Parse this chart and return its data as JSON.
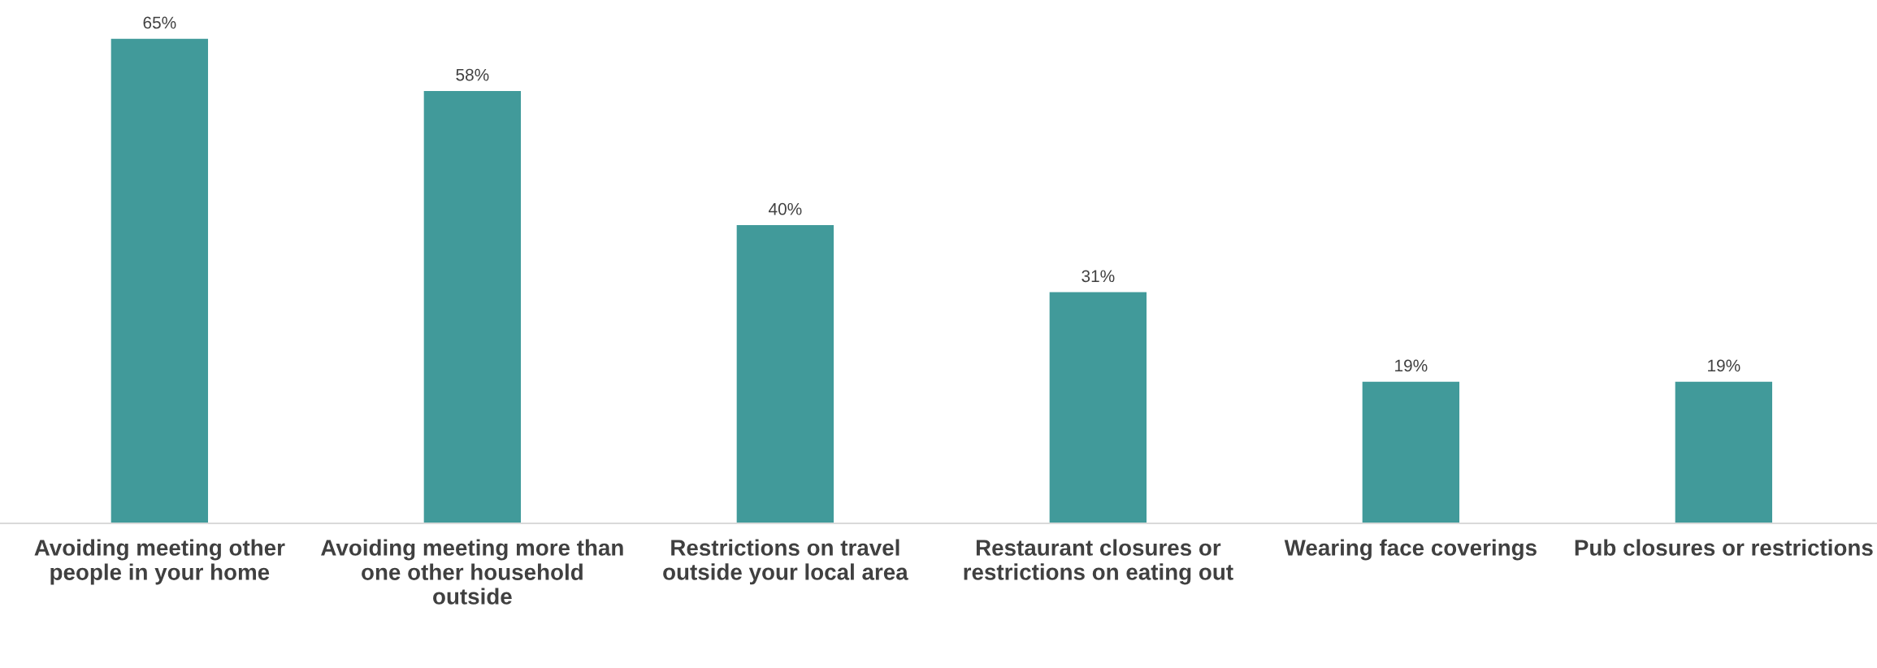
{
  "chart_data": {
    "type": "bar",
    "categories": [
      "Avoiding meeting other people in your home",
      "Avoiding meeting more than one other household outside",
      "Restrictions on travel outside your local area",
      "Restaurant closures or restrictions on eating out",
      "Wearing face coverings",
      "Pub closures or restrictions"
    ],
    "values": [
      65,
      58,
      40,
      31,
      19,
      19
    ],
    "value_labels": [
      "65%",
      "58%",
      "40%",
      "31%",
      "19%",
      "19%"
    ],
    "color": "#419a9a",
    "grid": false,
    "legend": false
  }
}
